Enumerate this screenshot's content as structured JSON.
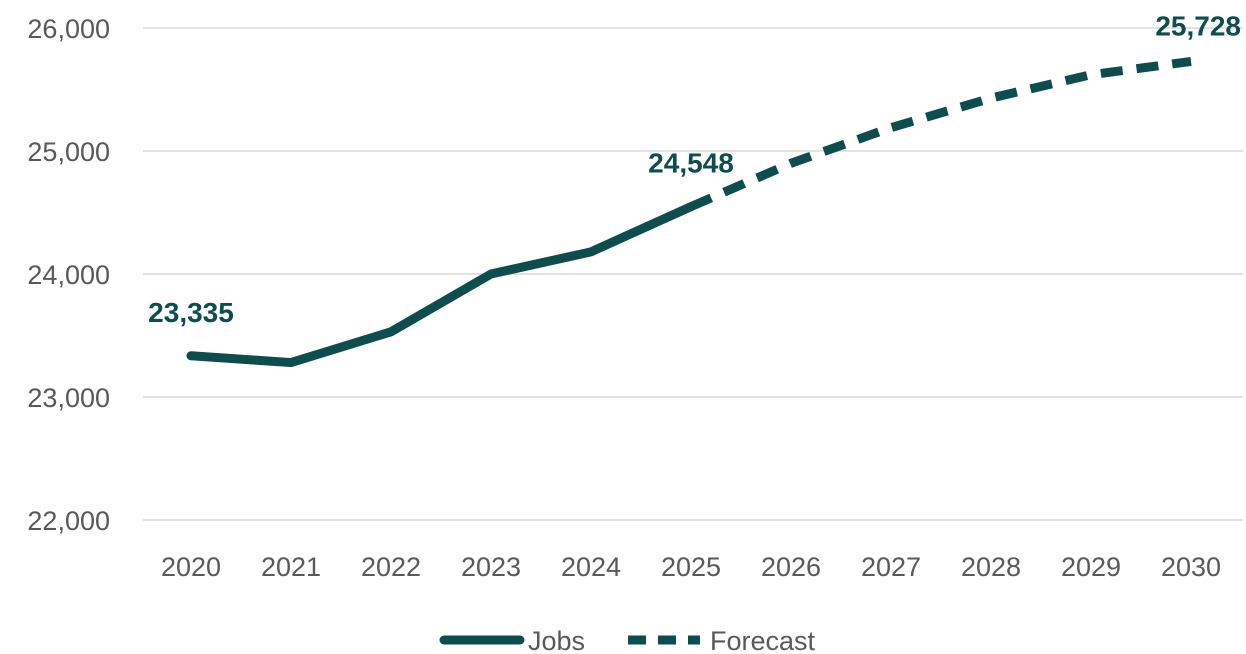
{
  "colors": {
    "line": "#0e4d4d",
    "grid": "#d9d9d9",
    "tick_text": "#595959"
  },
  "chart_data": {
    "type": "line",
    "title": "",
    "xlabel": "",
    "ylabel": "",
    "x": [
      "2020",
      "2021",
      "2022",
      "2023",
      "2024",
      "2025",
      "2026",
      "2027",
      "2028",
      "2029",
      "2030"
    ],
    "ylim": [
      22000,
      26000
    ],
    "y_ticks": [
      "22,000",
      "23,000",
      "24,000",
      "25,000",
      "26,000"
    ],
    "grid": true,
    "legend_position": "bottom",
    "series": [
      {
        "name": "Jobs",
        "style": "solid",
        "x": [
          "2020",
          "2021",
          "2022",
          "2023",
          "2024",
          "2025"
        ],
        "values": [
          23335,
          23280,
          23530,
          24000,
          24180,
          24548
        ]
      },
      {
        "name": "Forecast",
        "style": "dashed",
        "x": [
          "2025",
          "2026",
          "2027",
          "2028",
          "2029",
          "2030"
        ],
        "values": [
          24548,
          24900,
          25190,
          25430,
          25620,
          25728
        ]
      }
    ],
    "data_labels": [
      {
        "x": "2020",
        "value": 23335,
        "text": "23,335"
      },
      {
        "x": "2025",
        "value": 24548,
        "text": "24,548"
      },
      {
        "x": "2030",
        "value": 25728,
        "text": "25,728"
      }
    ]
  }
}
